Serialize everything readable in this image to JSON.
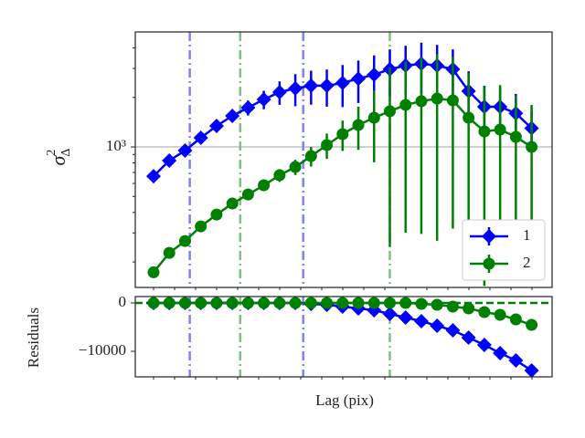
{
  "chart_data": [
    {
      "type": "line",
      "ylabel": {
        "symbol": "σ",
        "sup": "2",
        "sub": "Δ"
      },
      "log_y": true,
      "x": [
        1,
        2,
        3,
        4,
        5,
        6,
        7,
        8,
        9,
        10,
        11,
        12,
        13,
        14,
        15,
        16,
        17,
        18,
        19,
        20,
        21,
        22,
        23,
        24,
        25
      ],
      "xlim": [
        -0.16,
        26.3
      ],
      "ylim": [
        140,
        5000
      ],
      "yticks": [
        {
          "value": 1000,
          "label": "10³"
        }
      ],
      "hline": 1000,
      "vlines": [
        {
          "x": 3.3,
          "color": "#8080ff"
        },
        {
          "x": 10.5,
          "color": "#8080ff"
        },
        {
          "x": 6.5,
          "color": "#80c080"
        },
        {
          "x": 16.0,
          "color": "#80c080"
        }
      ],
      "legend": "lower right",
      "series": [
        {
          "name": "1",
          "color": "#0000ff",
          "marker": "diamond",
          "values": [
            664,
            826,
            950,
            1137,
            1342,
            1545,
            1733,
            1945,
            2154,
            2268,
            2356,
            2356,
            2448,
            2600,
            2750,
            2965,
            3121,
            3204,
            3121,
            2965,
            2183,
            1755,
            1755,
            1600,
            1300
          ],
          "errors": [
            20,
            30,
            40,
            60,
            80,
            120,
            180,
            250,
            350,
            500,
            550,
            600,
            700,
            750,
            850,
            950,
            1000,
            1100,
            1050,
            950,
            700,
            600,
            550,
            500,
            350
          ]
        },
        {
          "name": "2",
          "color": "#008000",
          "marker": "circle",
          "values": [
            173,
            227,
            268,
            329,
            388,
            453,
            514,
            585,
            673,
            755,
            880,
            1026,
            1196,
            1359,
            1506,
            1648,
            1801,
            1896,
            1969,
            1919,
            1506,
            1243,
            1275,
            1151,
            1000
          ],
          "errors": [
            5,
            8,
            10,
            15,
            20,
            25,
            35,
            45,
            60,
            80,
            120,
            180,
            250,
            400,
            700,
            1400,
            1500,
            1600,
            1700,
            1600,
            1300,
            1100,
            1100,
            900,
            800
          ]
        }
      ]
    },
    {
      "type": "line",
      "ylabel": "Residuals",
      "xlabel": "Lag (pix)",
      "x": [
        1,
        2,
        3,
        4,
        5,
        6,
        7,
        8,
        9,
        10,
        11,
        12,
        13,
        14,
        15,
        16,
        17,
        18,
        19,
        20,
        21,
        22,
        23,
        24,
        25
      ],
      "xlim": [
        -0.16,
        26.3
      ],
      "ylim": [
        -15280,
        1320
      ],
      "yticks": [
        0,
        {
          "value": -10000,
          "label": "−10000"
        }
      ],
      "hline": 0,
      "series": [
        {
          "name": "1",
          "color": "#0000ff",
          "marker": "diamond",
          "values": [
            0,
            0,
            0,
            0,
            0,
            0,
            0,
            0,
            0,
            0,
            -190,
            -380,
            -750,
            -1130,
            -1510,
            -2260,
            -3020,
            -3770,
            -4720,
            -5660,
            -7170,
            -8680,
            -10380,
            -11890,
            -13960
          ]
        },
        {
          "name": "2",
          "color": "#008000",
          "marker": "circle",
          "values": [
            0,
            0,
            0,
            0,
            0,
            0,
            0,
            0,
            0,
            0,
            0,
            0,
            0,
            0,
            0,
            0,
            0,
            -190,
            -380,
            -750,
            -1130,
            -1890,
            -2450,
            -3400,
            -4530
          ]
        }
      ]
    }
  ]
}
